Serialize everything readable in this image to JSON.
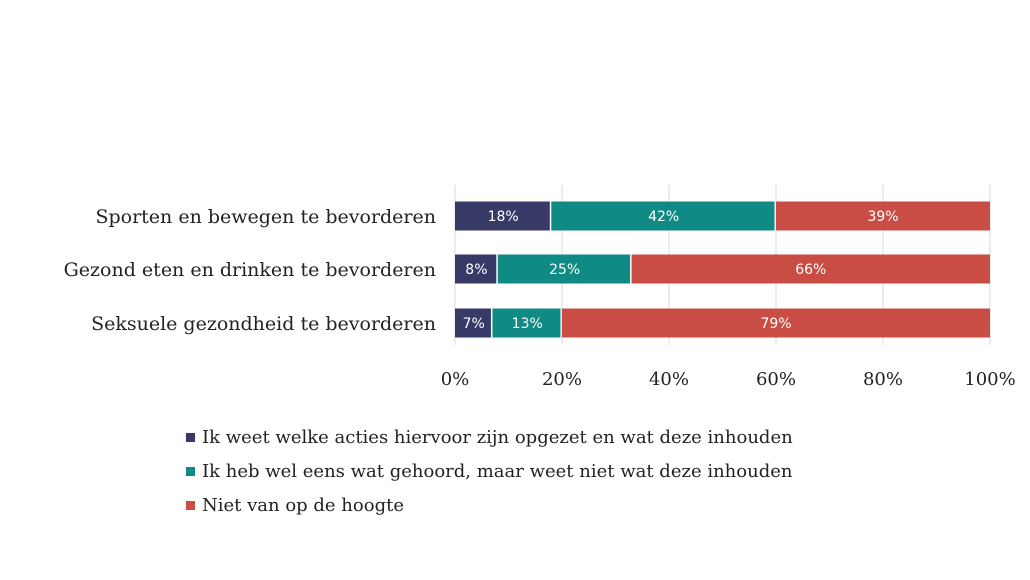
{
  "chart_data": {
    "type": "bar",
    "orientation": "horizontal",
    "stacked": true,
    "categories": [
      "Sporten en bewegen te bevorderen",
      "Gezond eten en drinken te bevorderen",
      "Seksuele gezondheid te bevorderen"
    ],
    "series": [
      {
        "name": "Ik weet welke acties hiervoor zijn opgezet en wat deze inhouden",
        "color": "#373a66",
        "values": [
          18,
          8,
          7
        ],
        "labels": [
          "18%",
          "8%",
          "7%"
        ]
      },
      {
        "name": "Ik heb wel eens wat gehoord, maar weet niet wat deze inhouden",
        "color": "#0f8a84",
        "values": [
          42,
          25,
          13
        ],
        "labels": [
          "42%",
          "25%",
          "13%"
        ]
      },
      {
        "name": "Niet van op de hoogte",
        "color": "#c94c45",
        "values": [
          39,
          66,
          79
        ],
        "labels": [
          "39%",
          "66%",
          "79%"
        ]
      }
    ],
    "xlim": [
      0,
      100
    ],
    "x_ticks": [
      "0%",
      "20%",
      "40%",
      "60%",
      "80%",
      "100%"
    ],
    "grid": true,
    "legend_position": "bottom"
  }
}
